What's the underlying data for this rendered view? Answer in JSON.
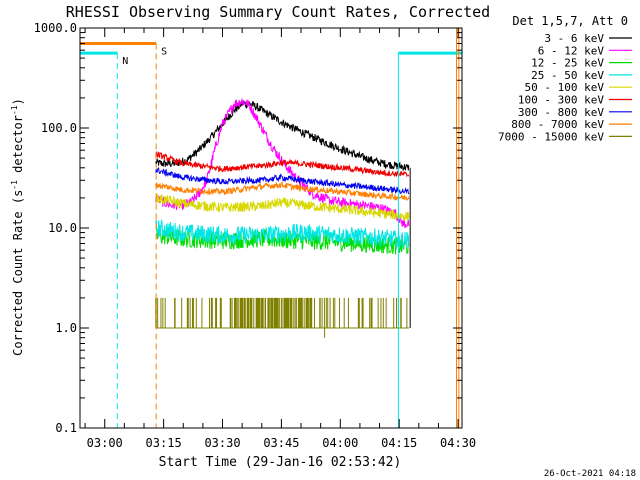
{
  "chart_data": {
    "type": "line",
    "title": "RHESSI Observing Summary Count Rates, Corrected",
    "xlabel": "Start Time (29-Jan-16 02:53:42)",
    "ylabel": "Corrected Count Rate (s⁻¹ detector⁻¹)",
    "ylabel_parts": {
      "a": "Corrected Count Rate (s",
      "b": "-1",
      "c": " detector",
      "d": "-1",
      "e": ")"
    },
    "y_scale": "log",
    "ylim": [
      0.1,
      1000
    ],
    "xlim_minutes_after_0300": [
      -6.3,
      91.0
    ],
    "x_ticks": [
      {
        "label": "03:00",
        "min": 0
      },
      {
        "label": "03:15",
        "min": 15
      },
      {
        "label": "03:30",
        "min": 30
      },
      {
        "label": "03:45",
        "min": 45
      },
      {
        "label": "04:00",
        "min": 60
      },
      {
        "label": "04:15",
        "min": 75
      },
      {
        "label": "04:30",
        "min": 90
      }
    ],
    "y_ticks": [
      {
        "label": "0.1",
        "value": 0.1
      },
      {
        "label": "1.0",
        "value": 1
      },
      {
        "label": "10.0",
        "value": 10
      },
      {
        "label": "100.0",
        "value": 100
      },
      {
        "label": "1000.0",
        "value": 1000
      }
    ],
    "legend": {
      "header": "Det 1,5,7, Att 0",
      "placement": "right",
      "entries": [
        {
          "label": "3 - 6 keV",
          "color": "#000000"
        },
        {
          "label": "6 - 12 keV",
          "color": "#ff00ff"
        },
        {
          "label": "12 - 25 keV",
          "color": "#00dd00"
        },
        {
          "label": "25 - 50 keV",
          "color": "#00e5e5"
        },
        {
          "label": "50 - 100 keV",
          "color": "#d8d800"
        },
        {
          "label": "100 - 300 keV",
          "color": "#ee0000"
        },
        {
          "label": "300 - 800 keV",
          "color": "#0000ee"
        },
        {
          "label": "800 - 7000 keV",
          "color": "#ff7f00"
        },
        {
          "label": "7000 - 15000 keV",
          "color": "#808000"
        }
      ]
    },
    "series": [
      {
        "name": "3 - 6 keV",
        "color": "#000000",
        "noise": 0.04,
        "x": [
          13.0,
          15.0,
          18.0,
          21.0,
          24.0,
          27.0,
          30.0,
          33.0,
          35.0,
          37.0,
          39.0,
          42.0,
          45.0,
          48.0,
          51.0,
          55.0,
          60.0,
          65.0,
          70.0,
          74.0,
          76.0,
          77.5
        ],
        "y": [
          45,
          44,
          44,
          48,
          60,
          80,
          110,
          150,
          175,
          175,
          160,
          135,
          115,
          100,
          88,
          75,
          62,
          52,
          45,
          42,
          41,
          40
        ]
      },
      {
        "name": "6 - 12 keV",
        "color": "#ff00ff",
        "noise": 0.05,
        "x": [
          13.0,
          15.0,
          17.0,
          20.0,
          22.0,
          24.0,
          26.0,
          28.0,
          30.0,
          32.0,
          33.0,
          34.0,
          35.0,
          36.0,
          37.0,
          38.0,
          39.0,
          41.0,
          43.0,
          45.0,
          47.0,
          50.0,
          53.0,
          57.0,
          60.0,
          65.0,
          70.0,
          74.0,
          76.0,
          77.5
        ],
        "y": [
          20,
          18,
          17,
          17,
          18,
          22,
          30,
          60,
          110,
          150,
          175,
          180,
          185,
          180,
          165,
          140,
          120,
          85,
          62,
          48,
          38,
          28,
          22,
          19,
          18,
          17,
          16,
          14,
          11,
          11
        ]
      },
      {
        "name": "12 - 25 keV",
        "color": "#00dd00",
        "noise": 0.09,
        "x": [
          13.0,
          20.0,
          30.0,
          40.0,
          50.0,
          60.0,
          70.0,
          77.5
        ],
        "y": [
          8.5,
          7.8,
          7.5,
          7.8,
          7.5,
          7.2,
          6.8,
          6.5
        ]
      },
      {
        "name": "25 - 50 keV",
        "color": "#00e5e5",
        "noise": 0.09,
        "x": [
          13.0,
          20.0,
          30.0,
          40.0,
          50.0,
          60.0,
          70.0,
          77.5
        ],
        "y": [
          10,
          9.0,
          8.5,
          8.5,
          9.0,
          8.5,
          8.0,
          7.5
        ]
      },
      {
        "name": "50 - 100 keV",
        "color": "#d8d800",
        "noise": 0.05,
        "x": [
          13.0,
          20.0,
          30.0,
          40.0,
          45.0,
          50.0,
          60.0,
          70.0,
          77.5
        ],
        "y": [
          20,
          17.5,
          16,
          16.5,
          18,
          17,
          15.5,
          14,
          13
        ]
      },
      {
        "name": "100 - 300 keV",
        "color": "#ee0000",
        "noise": 0.03,
        "x": [
          13.0,
          20.0,
          30.0,
          40.0,
          45.0,
          50.0,
          60.0,
          70.0,
          77.5
        ],
        "y": [
          55,
          44,
          39,
          42,
          45,
          44,
          40,
          36,
          34
        ]
      },
      {
        "name": "300 - 800 keV",
        "color": "#0000ee",
        "noise": 0.03,
        "x": [
          13.0,
          20.0,
          30.0,
          40.0,
          45.0,
          50.0,
          60.0,
          70.0,
          77.5
        ],
        "y": [
          38,
          32,
          29,
          30,
          32,
          30,
          27,
          25,
          23
        ]
      },
      {
        "name": "800 - 7000 keV",
        "color": "#ff7f00",
        "noise": 0.03,
        "x": [
          13.0,
          20.0,
          30.0,
          40.0,
          45.0,
          50.0,
          60.0,
          70.0,
          77.5
        ],
        "y": [
          27,
          24,
          23,
          26,
          27,
          25,
          23,
          21,
          20
        ]
      }
    ],
    "sparse_series": {
      "name": "7000 - 15000 keV",
      "color": "#808000",
      "baseline": 1.0,
      "spike_value": 2.0,
      "x_range": [
        13.0,
        77.5
      ],
      "dense_window": [
        33.0,
        52.0
      ],
      "dip": {
        "x": 56.0,
        "y": 0.8
      }
    },
    "black_edge": {
      "x": 77.8,
      "y_from": 40,
      "y_to": 1.0
    },
    "markers": [
      {
        "type": "hline",
        "label": "",
        "color": "#00e5e5",
        "x_from": -6.3,
        "x_to": 3.2,
        "y": 560,
        "width": 3
      },
      {
        "type": "vline",
        "label": "",
        "color": "#00e5e5",
        "x": -6.3,
        "y_from": 560,
        "y_to": 0.1,
        "dash": false
      },
      {
        "type": "vline",
        "label": "N",
        "color": "#00e5e5",
        "x": 3.2,
        "y_from": 560,
        "y_to": 0.1,
        "dash": true
      },
      {
        "type": "hline",
        "label": "",
        "color": "#ff7f00",
        "x_from": -6.3,
        "x_to": 13.1,
        "y": 700,
        "width": 3
      },
      {
        "type": "vline",
        "label": "S",
        "color": "#ff7f00",
        "x": 13.1,
        "y_from": 700,
        "y_to": 0.1,
        "dash": true
      },
      {
        "type": "vline",
        "label": "",
        "color": "#00e5e5",
        "x": 74.8,
        "y_from": 560,
        "y_to": 0.1,
        "dash": false
      },
      {
        "type": "hline",
        "label": "",
        "color": "#00e5e5",
        "x_from": 74.8,
        "x_to": 91.0,
        "y": 560,
        "width": 3
      },
      {
        "type": "vline",
        "label": "",
        "color": "#ff7f00",
        "x": 89.6,
        "y_from": 1000,
        "y_to": 0.1,
        "dash": false
      },
      {
        "type": "vline",
        "label": "",
        "color": "#ff7f00",
        "x": 90.2,
        "y_from": 1000,
        "y_to": 0.1,
        "dash": false
      }
    ],
    "footer_date": "26-Oct-2021 04:18"
  }
}
